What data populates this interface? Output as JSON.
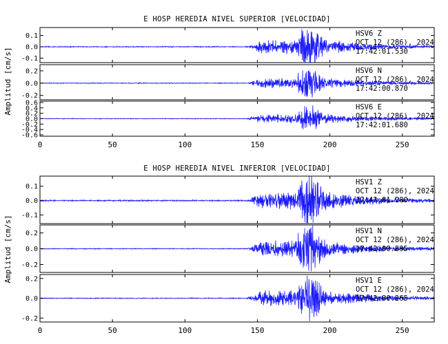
{
  "chart_data": [
    {
      "type": "line",
      "title": "E HOSP HEREDIA NIVEL SUPERIOR [VELOCIDAD]",
      "ylabel": "Amplitud [cm/s]",
      "xlim": [
        0,
        272
      ],
      "x_ticks": [
        "0",
        "50",
        "100",
        "150",
        "200",
        "250"
      ],
      "x_tick_values": [
        0,
        50,
        100,
        150,
        200,
        250
      ],
      "color": "#1a1aff",
      "panels": [
        {
          "station": "HSV6",
          "component": "Z",
          "date": "OCT 12 (286), 2024",
          "time": "17:42:01.530",
          "ylim": [
            -0.14,
            0.17
          ],
          "y_ticks": [
            "0.1",
            "0.0",
            "-0.1"
          ],
          "y_tick_values": [
            0.1,
            0,
            -0.1
          ],
          "onset": 143,
          "peak_time": 181,
          "peak_amplitude": 0.16,
          "noise": 0.004
        },
        {
          "station": "HSV6",
          "component": "N",
          "date": "OCT 12 (286), 2024",
          "time": "17:42:00.870",
          "ylim": [
            -0.27,
            0.3
          ],
          "y_ticks": [
            "0.2",
            "0.0",
            "-0.2"
          ],
          "y_tick_values": [
            0.2,
            0,
            -0.2
          ],
          "onset": 143,
          "peak_time": 181,
          "peak_amplitude": 0.22,
          "noise": 0.006
        },
        {
          "station": "HSV6",
          "component": "E",
          "date": "OCT 12 (286), 2024",
          "time": "17:42:01.680",
          "ylim": [
            -0.65,
            0.65
          ],
          "y_ticks": [
            "0.6",
            "0.4",
            "0.2",
            "0.0",
            "-0.2",
            "-0.4",
            "-0.6"
          ],
          "y_tick_values": [
            0.6,
            0.4,
            0.2,
            0,
            -0.2,
            -0.4,
            -0.6
          ],
          "onset": 143,
          "peak_time": 181,
          "peak_amplitude": 0.45,
          "noise": 0.012
        }
      ]
    },
    {
      "type": "line",
      "title": "E HOSP HEREDIA NIVEL INFERIOR [VELOCIDAD]",
      "ylabel": "Amplitud [cm/s]",
      "xlim": [
        0,
        272
      ],
      "x_ticks": [
        "0",
        "50",
        "100",
        "150",
        "200",
        "250"
      ],
      "x_tick_values": [
        0,
        50,
        100,
        150,
        200,
        250
      ],
      "color": "#1a1aff",
      "panels": [
        {
          "station": "HSV1",
          "component": "Z",
          "date": "OCT 12 (286), 2024",
          "time": "17:42:01.280",
          "ylim": [
            -0.16,
            0.17
          ],
          "y_ticks": [
            "0.1",
            "0.0",
            "-0.1"
          ],
          "y_tick_values": [
            0.1,
            0,
            -0.1
          ],
          "onset": 143,
          "peak_time": 181,
          "peak_amplitude": 0.16,
          "noise": 0.004
        },
        {
          "station": "HSV1",
          "component": "N",
          "date": "OCT 12 (286), 2024",
          "time": "17:42:00.895",
          "ylim": [
            -0.3,
            0.3
          ],
          "y_ticks": [
            "0.2",
            "0.0",
            "-0.2"
          ],
          "y_tick_values": [
            0.2,
            0,
            -0.2
          ],
          "onset": 143,
          "peak_time": 181,
          "peak_amplitude": 0.28,
          "noise": 0.005
        },
        {
          "station": "HSV1",
          "component": "E",
          "date": "OCT 12 (286), 2024",
          "time": "17:42:00.265",
          "ylim": [
            -0.24,
            0.24
          ],
          "y_ticks": [
            "0.2",
            "0.0",
            "-0.2"
          ],
          "y_tick_values": [
            0.2,
            0,
            -0.2
          ],
          "onset": 143,
          "peak_time": 181,
          "peak_amplitude": 0.22,
          "noise": 0.004
        }
      ]
    }
  ]
}
